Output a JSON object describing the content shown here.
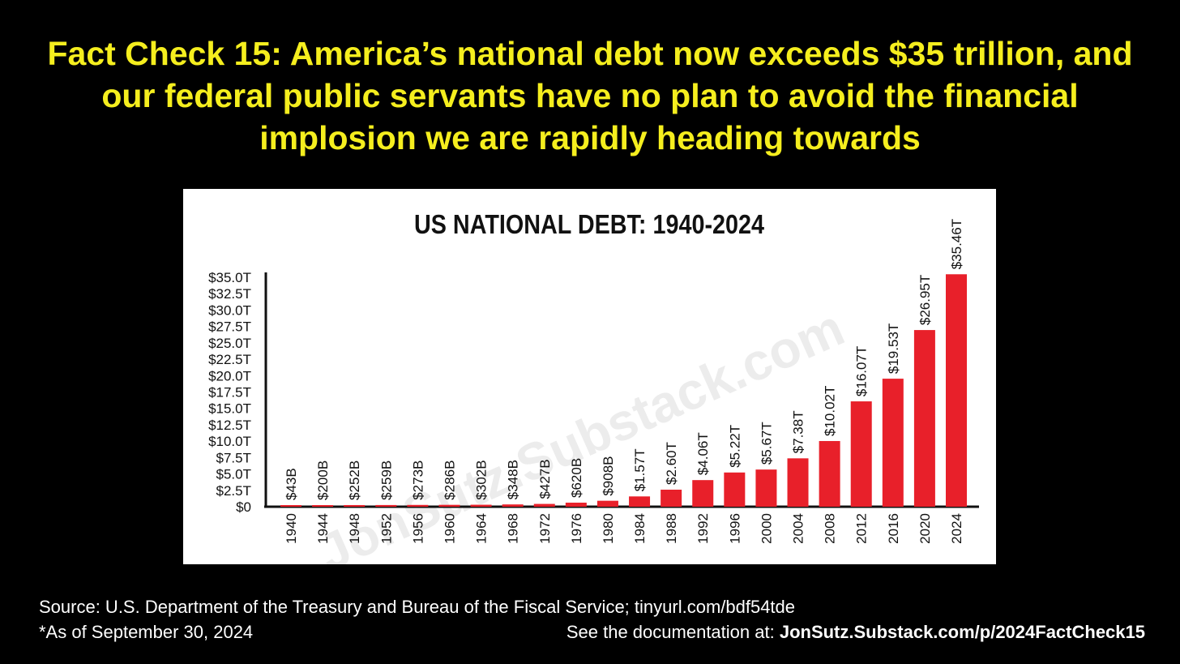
{
  "headline": "Fact Check 15: America’s national debt now exceeds $35 trillion, and our federal public servants have no plan to avoid the financial implosion we are rapidly heading towards",
  "watermark": "JonSutz.Substack.com",
  "footer": {
    "source": "Source: U.S. Department of the Treasury and Bureau of the Fiscal Service; tinyurl.com/bdf54tde",
    "as_of": "*As of September 30, 2024",
    "docs_prefix": "See the documentation at: ",
    "docs_link": "JonSutz.Substack.com/p/2024FactCheck15"
  },
  "colors": {
    "headline": "#f5ee1e",
    "bar": "#e8202a",
    "background": "#000000",
    "panel": "#ffffff"
  },
  "chart_data": {
    "type": "bar",
    "title": "US NATIONAL DEBT: 1940-2024",
    "xlabel": "",
    "ylabel": "",
    "ylim": [
      0,
      35
    ],
    "y_unit": "trillion USD",
    "y_ticks": [
      0,
      2.5,
      5,
      7.5,
      10,
      12.5,
      15,
      17.5,
      20,
      22.5,
      25,
      27.5,
      30,
      32.5,
      35
    ],
    "y_tick_labels": [
      "$0",
      "$2.5T",
      "$5.0T",
      "$7.5T",
      "$10.0T",
      "$12.5T",
      "$15.0T",
      "$17.5T",
      "$20.0T",
      "$22.5T",
      "$25.0T",
      "$27.5T",
      "$30.0T",
      "$32.5T",
      "$35.0T"
    ],
    "categories": [
      "1940",
      "1944",
      "1948",
      "1952",
      "1956",
      "1960",
      "1964",
      "1968",
      "1972",
      "1976",
      "1980",
      "1984",
      "1988",
      "1992",
      "1996",
      "2000",
      "2004",
      "2008",
      "2012",
      "2016",
      "2020",
      "2024"
    ],
    "values": [
      0.043,
      0.2,
      0.252,
      0.259,
      0.273,
      0.286,
      0.302,
      0.348,
      0.427,
      0.62,
      0.908,
      1.57,
      2.6,
      4.06,
      5.22,
      5.67,
      7.38,
      10.02,
      16.07,
      19.53,
      26.95,
      35.46
    ],
    "data_labels": [
      "$43B",
      "$200B",
      "$252B",
      "$259B",
      "$273B",
      "$286B",
      "$302B",
      "$348B",
      "$427B",
      "$620B",
      "$908B",
      "$1.57T",
      "$2.60T",
      "$4.06T",
      "$5.22T",
      "$5.67T",
      "$7.38T",
      "$10.02T",
      "$16.07T",
      "$19.53T",
      "$26.95T",
      "$35.46T"
    ],
    "grid": false,
    "legend": "none"
  }
}
